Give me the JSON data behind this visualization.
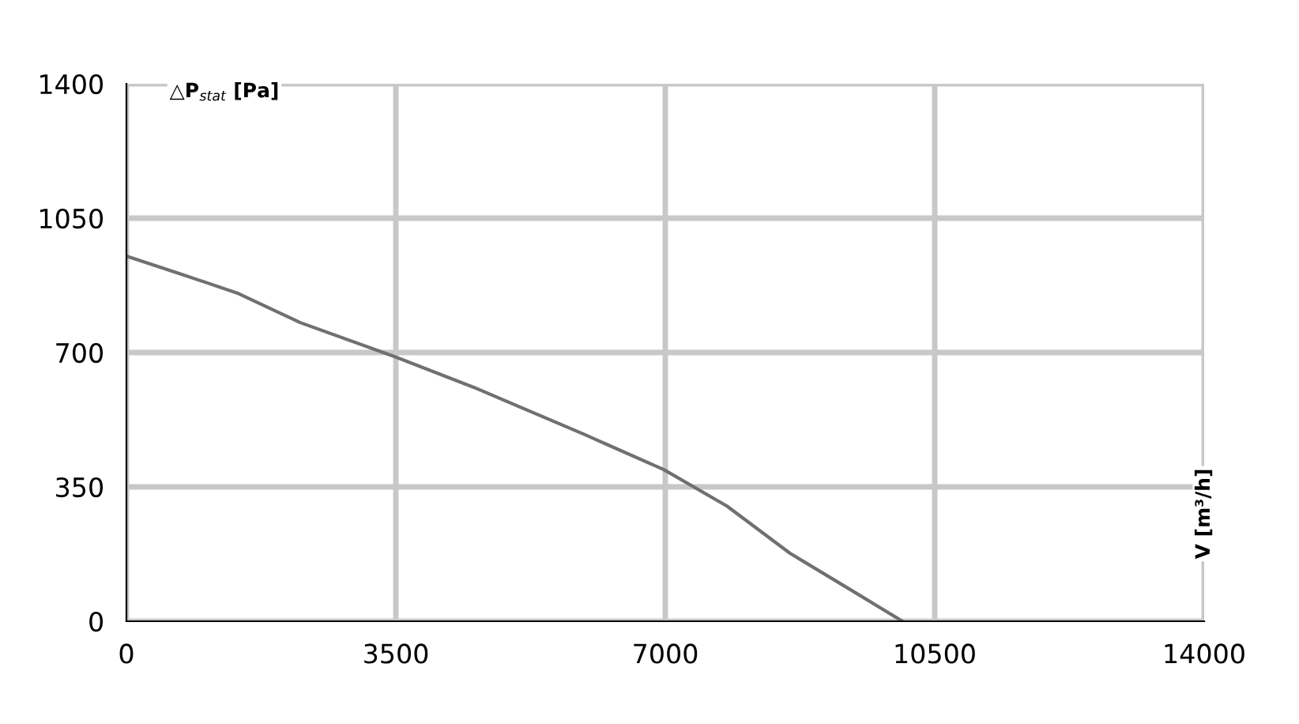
{
  "chart_data": {
    "type": "line",
    "ylabel": "△P$_{stat}$ [Pa]",
    "annotations": [
      "V [m³/h]"
    ],
    "x": [
      0,
      700,
      1437,
      2258,
      3500,
      4516,
      5955,
      6980,
      7800,
      8620,
      9440,
      10080
    ],
    "series": [
      {
        "color": "#707070",
        "values": [
          951,
          905,
          855,
          778,
          688,
          609,
          486,
          395,
          300,
          177,
          78,
          0
        ]
      }
    ],
    "xlim": [
      0,
      14000
    ],
    "xticks": [
      0,
      3500,
      7000,
      10500,
      14000
    ],
    "ylim": [
      0,
      1400
    ],
    "yticks": [
      0,
      350,
      700,
      1050,
      1400
    ],
    "grid": true,
    "marker": "none",
    "line_style": "solid"
  }
}
